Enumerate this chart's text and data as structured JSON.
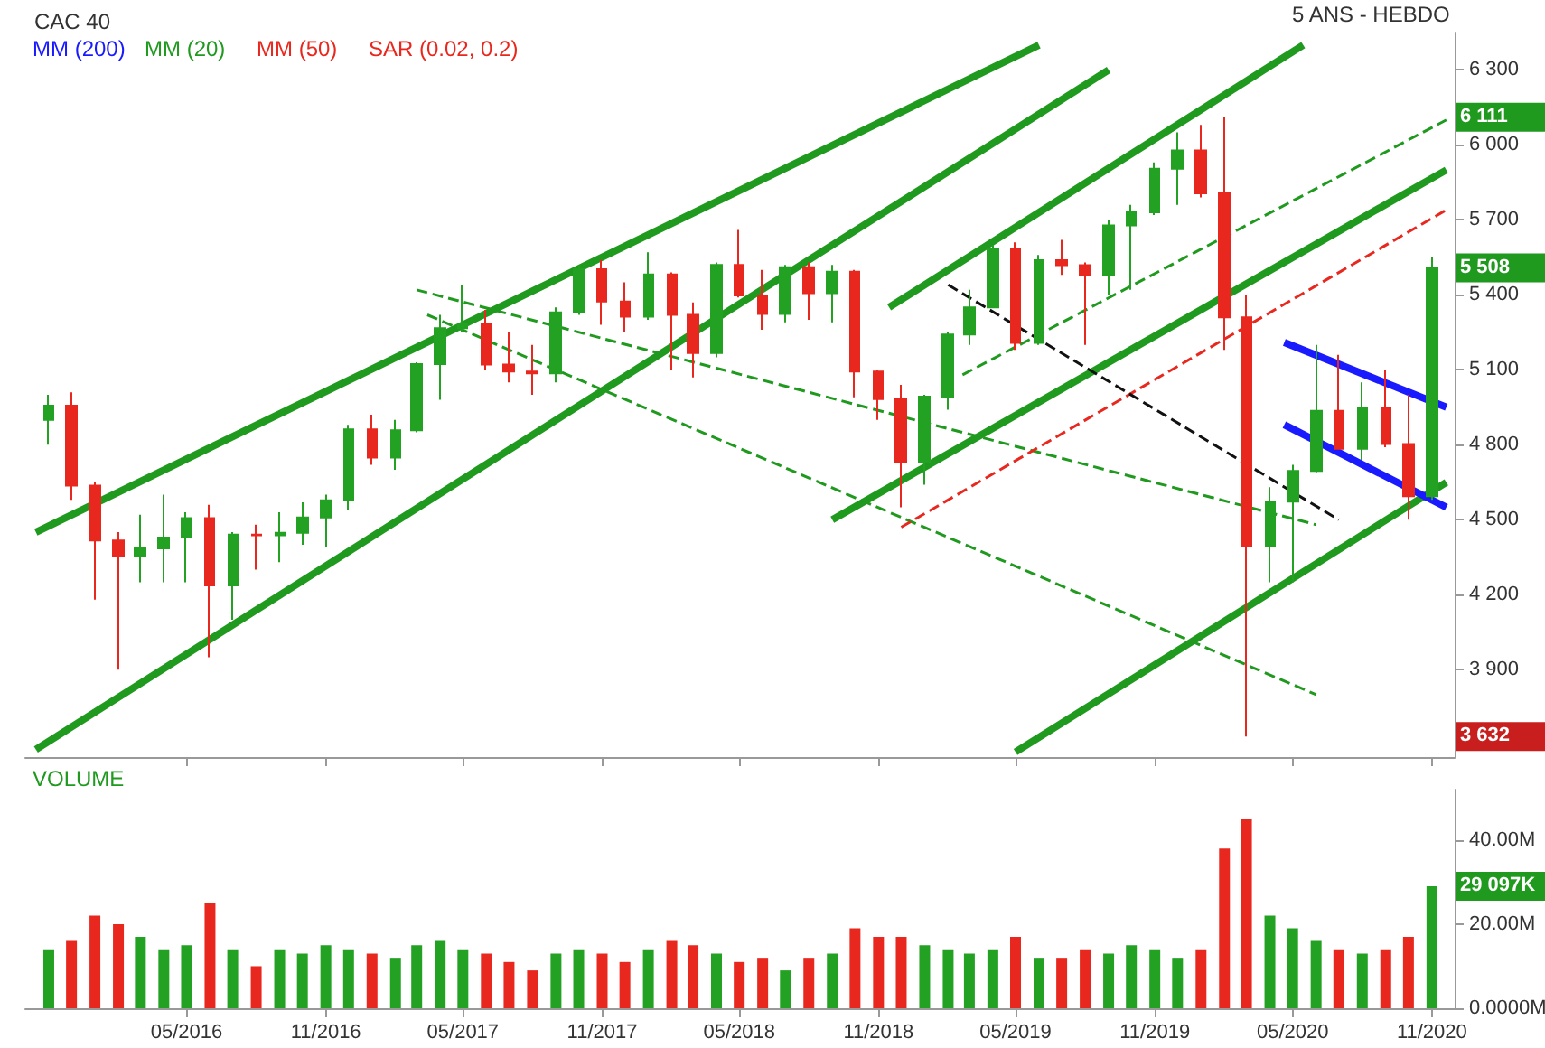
{
  "chart_data": [
    {
      "type": "candlestick",
      "title": "CAC 40",
      "x": [
        "2015-11-01",
        "2015-12-01",
        "2016-01-01",
        "2016-02-01",
        "2016-03-01",
        "2016-04-01",
        "2016-05-01",
        "2016-06-01",
        "2016-07-01",
        "2016-08-01",
        "2016-09-01",
        "2016-10-01",
        "2016-11-01",
        "2016-12-01",
        "2017-01-01",
        "2017-02-01",
        "2017-03-01",
        "2017-04-01",
        "2017-05-01",
        "2017-06-01",
        "2017-07-01",
        "2017-08-01",
        "2017-09-01",
        "2017-10-01",
        "2017-11-01",
        "2017-12-01",
        "2018-01-01",
        "2018-02-01",
        "2018-03-01",
        "2018-04-01",
        "2018-05-01",
        "2018-06-01",
        "2018-07-01",
        "2018-08-01",
        "2018-09-01",
        "2018-10-01",
        "2018-11-01",
        "2018-12-01",
        "2019-01-01",
        "2019-02-01",
        "2019-03-01",
        "2019-04-01",
        "2019-05-01",
        "2019-06-01",
        "2019-07-01",
        "2019-08-01",
        "2019-09-01",
        "2019-10-01",
        "2019-11-01",
        "2019-12-01",
        "2020-01-01",
        "2020-02-01",
        "2020-03-01",
        "2020-04-01",
        "2020-05-01",
        "2020-06-01",
        "2020-07-01",
        "2020-08-01",
        "2020-09-01",
        "2020-10-01",
        "2020-11-01"
      ],
      "ohlc": [
        [
          4900,
          5000,
          4800,
          4957
        ],
        [
          4957,
          5010,
          4580,
          4637
        ],
        [
          4637,
          4650,
          4180,
          4417
        ],
        [
          4417,
          4450,
          3900,
          4354
        ],
        [
          4354,
          4520,
          4250,
          4385
        ],
        [
          4385,
          4600,
          4250,
          4429
        ],
        [
          4429,
          4530,
          4250,
          4506
        ],
        [
          4506,
          4560,
          3950,
          4237
        ],
        [
          4237,
          4450,
          4100,
          4440
        ],
        [
          4440,
          4480,
          4300,
          4438
        ],
        [
          4438,
          4530,
          4330,
          4448
        ],
        [
          4448,
          4570,
          4400,
          4509
        ],
        [
          4509,
          4600,
          4390,
          4578
        ],
        [
          4578,
          4880,
          4540,
          4862
        ],
        [
          4862,
          4920,
          4720,
          4749
        ],
        [
          4749,
          4900,
          4700,
          4858
        ],
        [
          4858,
          5130,
          4850,
          5123
        ],
        [
          5123,
          5320,
          4980,
          5267
        ],
        [
          5267,
          5440,
          5250,
          5283
        ],
        [
          5283,
          5340,
          5100,
          5121
        ],
        [
          5121,
          5250,
          5050,
          5093
        ],
        [
          5093,
          5200,
          5000,
          5086
        ],
        [
          5086,
          5350,
          5050,
          5330
        ],
        [
          5330,
          5520,
          5320,
          5503
        ],
        [
          5503,
          5540,
          5280,
          5373
        ],
        [
          5373,
          5450,
          5250,
          5313
        ],
        [
          5313,
          5570,
          5300,
          5482
        ],
        [
          5482,
          5490,
          5100,
          5320
        ],
        [
          5320,
          5370,
          5070,
          5167
        ],
        [
          5167,
          5530,
          5150,
          5520
        ],
        [
          5520,
          5660,
          5390,
          5398
        ],
        [
          5398,
          5500,
          5260,
          5324
        ],
        [
          5324,
          5520,
          5290,
          5511
        ],
        [
          5511,
          5530,
          5300,
          5407
        ],
        [
          5407,
          5520,
          5290,
          5493
        ],
        [
          5493,
          5500,
          4990,
          5093
        ],
        [
          5093,
          5100,
          4900,
          4983
        ],
        [
          4983,
          5040,
          4550,
          4731
        ],
        [
          4731,
          5000,
          4640,
          4993
        ],
        [
          4993,
          5250,
          4940,
          5241
        ],
        [
          5241,
          5420,
          5200,
          5350
        ],
        [
          5350,
          5600,
          5350,
          5586
        ],
        [
          5586,
          5610,
          5180,
          5208
        ],
        [
          5208,
          5560,
          5200,
          5539
        ],
        [
          5539,
          5620,
          5480,
          5519
        ],
        [
          5519,
          5530,
          5200,
          5480
        ],
        [
          5480,
          5700,
          5400,
          5678
        ],
        [
          5678,
          5760,
          5420,
          5730
        ],
        [
          5730,
          5930,
          5720,
          5905
        ],
        [
          5905,
          6050,
          5760,
          5978
        ],
        [
          5978,
          6080,
          5790,
          5806
        ],
        [
          5806,
          6111,
          5180,
          5310
        ],
        [
          5310,
          5400,
          3632,
          4396
        ],
        [
          4396,
          4630,
          4250,
          4572
        ],
        [
          4572,
          4720,
          4250,
          4695
        ],
        [
          4695,
          5200,
          4690,
          4936
        ],
        [
          4936,
          5160,
          4780,
          4784
        ],
        [
          4784,
          5050,
          4740,
          4947
        ],
        [
          4947,
          5100,
          4790,
          4803
        ],
        [
          4803,
          5000,
          4500,
          4594
        ],
        [
          4594,
          5550,
          4580,
          5508
        ]
      ],
      "series": [
        {
          "type": "line",
          "color": "#1f9a1f",
          "line_style": "solid",
          "x": [
            "2015-10-15",
            "2019-06-01"
          ],
          "values": [
            4450,
            6400
          ]
        },
        {
          "type": "line",
          "color": "#1f9a1f",
          "line_style": "solid",
          "x": [
            "2015-10-15",
            "2019-09-01"
          ],
          "values": [
            3580,
            6300
          ]
        },
        {
          "type": "line",
          "color": "#1f9a1f",
          "line_style": "solid",
          "x": [
            "2018-11-15",
            "2020-05-15"
          ],
          "values": [
            5350,
            6400
          ]
        },
        {
          "type": "line",
          "color": "#1f9a1f",
          "line_style": "solid",
          "x": [
            "2018-09-01",
            "2020-11-20"
          ],
          "values": [
            4500,
            5900
          ]
        },
        {
          "type": "line",
          "color": "#1f9a1f",
          "line_style": "solid",
          "x": [
            "2019-05-01",
            "2020-11-20"
          ],
          "values": [
            3570,
            4650
          ]
        },
        {
          "type": "line",
          "color": "#1f9a1f",
          "line_style": "dashed",
          "x": [
            "2017-03-01",
            "2020-06-01"
          ],
          "values": [
            5420,
            4480
          ]
        },
        {
          "type": "line",
          "color": "#1f9a1f",
          "line_style": "dashed",
          "x": [
            "2017-03-15",
            "2020-06-01"
          ],
          "values": [
            5320,
            3800
          ]
        },
        {
          "type": "line",
          "color": "#1f9a1f",
          "line_style": "dashed",
          "x": [
            "2019-02-20",
            "2020-11-20"
          ],
          "values": [
            5080,
            6100
          ]
        },
        {
          "type": "line",
          "color": "#e8281e",
          "line_style": "dashed",
          "x": [
            "2018-12-01",
            "2020-11-20"
          ],
          "values": [
            4470,
            5740
          ]
        },
        {
          "type": "line",
          "color": "#111111",
          "line_style": "dashed",
          "x": [
            "2019-02-01",
            "2020-07-01"
          ],
          "values": [
            5440,
            4500
          ]
        },
        {
          "type": "line",
          "color": "#1a1aff",
          "line_style": "solid",
          "x": [
            "2020-04-20",
            "2020-11-20"
          ],
          "values": [
            5210,
            4950
          ]
        },
        {
          "type": "line",
          "color": "#1a1aff",
          "line_style": "solid",
          "x": [
            "2020-04-20",
            "2020-11-20"
          ],
          "values": [
            4880,
            4550
          ]
        }
      ],
      "xlim": [
        "2015-10-01",
        "2020-12-01"
      ],
      "ylim": [
        3550,
        6450
      ],
      "yticks": [
        {
          "value": 3900,
          "label": "3 900"
        },
        {
          "value": 4200,
          "label": "4 200"
        },
        {
          "value": 4500,
          "label": "4 500"
        },
        {
          "value": 4800,
          "label": "4 800"
        },
        {
          "value": 5100,
          "label": "5 100"
        },
        {
          "value": 5400,
          "label": "5 400"
        },
        {
          "value": 5700,
          "label": "5 700"
        },
        {
          "value": 6000,
          "label": "6 000"
        },
        {
          "value": 6300,
          "label": "6 300"
        }
      ],
      "xticks": [
        {
          "value": "2016-05-01",
          "label": null
        },
        {
          "value": "2016-11-01",
          "label": null
        },
        {
          "value": "2017-05-01",
          "label": null
        },
        {
          "value": "2017-11-01",
          "label": null
        },
        {
          "value": "2018-05-01",
          "label": null
        },
        {
          "value": "2018-11-01",
          "label": null
        },
        {
          "value": "2019-05-01",
          "label": null
        },
        {
          "value": "2019-11-01",
          "label": null
        },
        {
          "value": "2020-05-01",
          "label": null
        },
        {
          "value": "2020-11-01",
          "label": null
        }
      ],
      "tick_labels": "y",
      "annotations": [
        "5 ANS - HEBDO",
        "MM (200)",
        "MM (20)",
        "MM (50)",
        "SAR (0.02, 0.2)",
        "6 111",
        "5 508",
        "3 632"
      ]
    },
    {
      "type": "bar",
      "x": [
        "2015-11-01",
        "2015-12-01",
        "2016-01-01",
        "2016-02-01",
        "2016-03-01",
        "2016-04-01",
        "2016-05-01",
        "2016-06-01",
        "2016-07-01",
        "2016-08-01",
        "2016-09-01",
        "2016-10-01",
        "2016-11-01",
        "2016-12-01",
        "2017-01-01",
        "2017-02-01",
        "2017-03-01",
        "2017-04-01",
        "2017-05-01",
        "2017-06-01",
        "2017-07-01",
        "2017-08-01",
        "2017-09-01",
        "2017-10-01",
        "2017-11-01",
        "2017-12-01",
        "2018-01-01",
        "2018-02-01",
        "2018-03-01",
        "2018-04-01",
        "2018-05-01",
        "2018-06-01",
        "2018-07-01",
        "2018-08-01",
        "2018-09-01",
        "2018-10-01",
        "2018-11-01",
        "2018-12-01",
        "2019-01-01",
        "2019-02-01",
        "2019-03-01",
        "2019-04-01",
        "2019-05-01",
        "2019-06-01",
        "2019-07-01",
        "2019-08-01",
        "2019-09-01",
        "2019-10-01",
        "2019-11-01",
        "2019-12-01",
        "2020-01-01",
        "2020-02-01",
        "2020-03-01",
        "2020-04-01",
        "2020-05-01",
        "2020-06-01",
        "2020-07-01",
        "2020-08-01",
        "2020-09-01",
        "2020-10-01",
        "2020-11-01"
      ],
      "values": [
        14,
        16,
        22,
        20,
        17,
        14,
        15,
        25,
        14,
        10,
        14,
        13,
        15,
        14,
        13,
        12,
        15,
        16,
        14,
        13,
        11,
        9,
        13,
        14,
        13,
        11,
        14,
        16,
        15,
        13,
        11,
        12,
        9,
        12,
        13,
        19,
        17,
        17,
        15,
        14,
        13,
        14,
        17,
        12,
        12,
        14,
        13,
        15,
        14,
        12,
        14,
        38,
        45,
        22,
        19,
        16,
        14,
        13,
        14,
        17,
        29
      ],
      "colors": [
        "#22a122",
        "#e8281e",
        "#e8281e",
        "#e8281e",
        "#22a122",
        "#22a122",
        "#22a122",
        "#e8281e",
        "#22a122",
        "#e8281e",
        "#22a122",
        "#22a122",
        "#22a122",
        "#22a122",
        "#e8281e",
        "#22a122",
        "#22a122",
        "#22a122",
        "#22a122",
        "#e8281e",
        "#e8281e",
        "#e8281e",
        "#22a122",
        "#22a122",
        "#e8281e",
        "#e8281e",
        "#22a122",
        "#e8281e",
        "#e8281e",
        "#22a122",
        "#e8281e",
        "#e8281e",
        "#22a122",
        "#e8281e",
        "#22a122",
        "#e8281e",
        "#e8281e",
        "#e8281e",
        "#22a122",
        "#22a122",
        "#22a122",
        "#22a122",
        "#e8281e",
        "#22a122",
        "#e8281e",
        "#e8281e",
        "#22a122",
        "#22a122",
        "#22a122",
        "#22a122",
        "#e8281e",
        "#e8281e",
        "#e8281e",
        "#22a122",
        "#22a122",
        "#22a122",
        "#e8281e",
        "#22a122",
        "#e8281e",
        "#e8281e",
        "#22a122"
      ],
      "xlim": [
        "2015-10-01",
        "2020-12-01"
      ],
      "xticks": [
        {
          "value": "2016-05-01",
          "label": "05/2016"
        },
        {
          "value": "2016-11-01",
          "label": "11/2016"
        },
        {
          "value": "2017-05-01",
          "label": "05/2017"
        },
        {
          "value": "2017-11-01",
          "label": "11/2017"
        },
        {
          "value": "2018-05-01",
          "label": "05/2018"
        },
        {
          "value": "2018-11-01",
          "label": "11/2018"
        },
        {
          "value": "2019-05-01",
          "label": "05/2019"
        },
        {
          "value": "2019-11-01",
          "label": "11/2019"
        },
        {
          "value": "2020-05-01",
          "label": "05/2020"
        },
        {
          "value": "2020-11-01",
          "label": "11/2020"
        }
      ],
      "ylim": [
        0,
        52
      ],
      "yticks": [
        {
          "value": 0,
          "label": "0.0000M"
        },
        {
          "value": 20,
          "label": "20.00M"
        },
        {
          "value": 40,
          "label": "40.00M"
        }
      ],
      "annotations": [
        "VOLUME",
        "29 097K"
      ]
    }
  ]
}
